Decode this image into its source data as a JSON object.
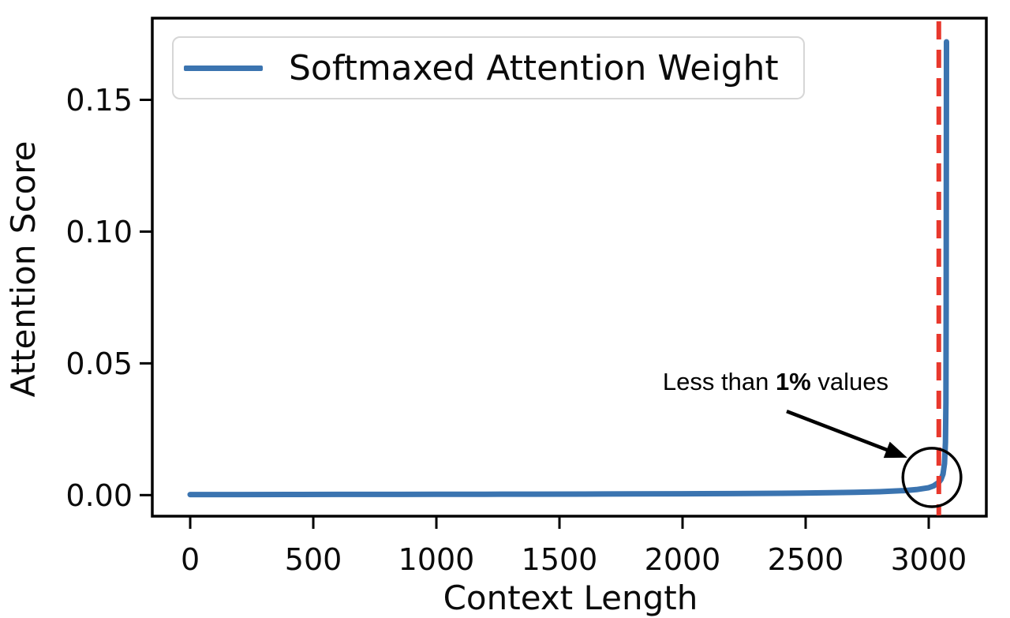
{
  "chart_data": {
    "type": "line",
    "title": "",
    "xlabel": "Context Length",
    "ylabel": "Attention Score",
    "grid": false,
    "legend": [
      "Softmaxed Attention Weight"
    ],
    "legend_position": "upper left",
    "xlim": [
      -154,
      3234
    ],
    "ylim": [
      -0.008,
      0.181
    ],
    "xtick_values": [
      0,
      500,
      1000,
      1500,
      2000,
      2500,
      3000
    ],
    "xtick_labels": [
      "0",
      "500",
      "1000",
      "1500",
      "2000",
      "2500",
      "3000"
    ],
    "ytick_values": [
      0.0,
      0.05,
      0.1,
      0.15
    ],
    "ytick_labels": [
      "0.00",
      "0.05",
      "0.10",
      "0.15"
    ],
    "series": [
      {
        "name": "Softmaxed Attention Weight",
        "color": "#3b74b0",
        "points": [
          [
            0,
            0.0002
          ],
          [
            200,
            0.00022
          ],
          [
            400,
            0.00024
          ],
          [
            600,
            0.00026
          ],
          [
            800,
            0.00028
          ],
          [
            1000,
            0.0003
          ],
          [
            1200,
            0.00033
          ],
          [
            1400,
            0.00036
          ],
          [
            1600,
            0.0004
          ],
          [
            1800,
            0.00045
          ],
          [
            2000,
            0.0005
          ],
          [
            2200,
            0.00058
          ],
          [
            2400,
            0.0007
          ],
          [
            2600,
            0.0009
          ],
          [
            2700,
            0.00105
          ],
          [
            2800,
            0.0013
          ],
          [
            2900,
            0.0017
          ],
          [
            2950,
            0.0021
          ],
          [
            3000,
            0.0028
          ],
          [
            3020,
            0.0035
          ],
          [
            3040,
            0.0048
          ],
          [
            3050,
            0.006
          ],
          [
            3058,
            0.008
          ],
          [
            3064,
            0.012
          ],
          [
            3068,
            0.02
          ],
          [
            3070,
            0.035
          ],
          [
            3071,
            0.07
          ],
          [
            3072,
            0.172
          ]
        ]
      }
    ],
    "vline": {
      "x": 3041,
      "color": "#e8382d",
      "style": "dashed"
    },
    "annotations": {
      "label": {
        "prefix": "Less than ",
        "bold": "1%",
        "suffix": " values",
        "x": 2378,
        "y": 0.043
      },
      "arrow": {
        "from": [
          2423,
          0.0318
        ],
        "to": [
          2913,
          0.0142
        ],
        "color": "#000000"
      },
      "circle": {
        "cx": 3013,
        "cy": 0.0067,
        "rx": 118,
        "ry": 0.0111,
        "color": "#000000"
      }
    }
  },
  "colors": {
    "curve": "#3b74b0",
    "vline": "#e8382d",
    "frame": "#000000",
    "text": "#0b0b0b"
  }
}
